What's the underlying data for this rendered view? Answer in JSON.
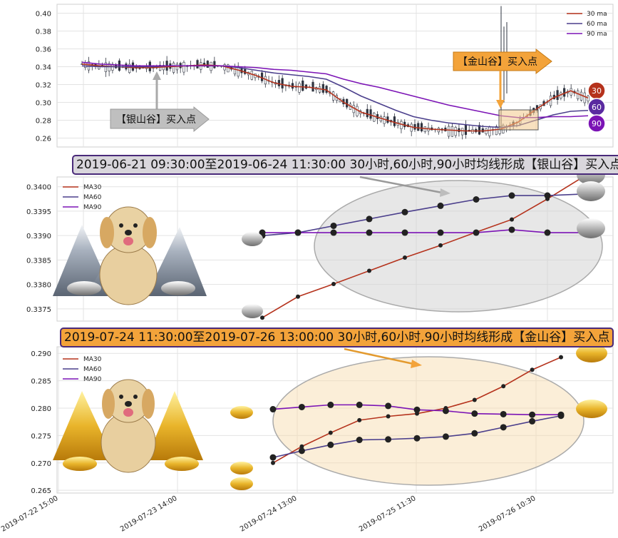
{
  "colors": {
    "ma30": "#b5321c",
    "ma60": "#4b3f8c",
    "ma90": "#7b13b5",
    "gold": "#f3a33a",
    "silver": "#c9c9c9"
  },
  "panel1": {
    "yticks": [
      "0.40",
      "0.38",
      "0.36",
      "0.34",
      "0.32",
      "0.30",
      "0.28",
      "0.26"
    ],
    "legend": [
      "30 ma",
      "60 ma",
      "90 ma"
    ],
    "silver_label": "【银山谷】买入点",
    "gold_label": "【金山谷】买入点",
    "badges": [
      "30",
      "60",
      "90"
    ]
  },
  "banner_silver": "2019-06-21 09:30:00至2019-06-24 11:30:00 30小时,60小时,90小时均线形成【银山谷】买入点",
  "banner_gold": "2019-07-24 11:30:00至2019-07-26 13:00:00 30小时,60小时,90小时均线形成【金山谷】买入点",
  "panel2": {
    "legend": [
      "MA30",
      "MA60",
      "MA90"
    ],
    "yticks": [
      "0.3400",
      "0.3395",
      "0.3390",
      "0.3385",
      "0.3380",
      "0.3375"
    ]
  },
  "panel3": {
    "legend": [
      "MA30",
      "MA60",
      "MA90"
    ],
    "yticks": [
      "0.290",
      "0.285",
      "0.280",
      "0.275",
      "0.270",
      "0.265"
    ],
    "xticks": [
      "2019-07-22 15:00",
      "2019-07-23 14:00",
      "2019-07-24 13:00",
      "2019-07-25 11:30",
      "2019-07-26 10:30"
    ]
  },
  "chart_data": [
    {
      "type": "line",
      "series": [
        {
          "name": "30 ma",
          "values": [
            0.343,
            0.341,
            0.34,
            0.339,
            0.339,
            0.34,
            0.341,
            0.342,
            0.341,
            0.336,
            0.33,
            0.322,
            0.318,
            0.317,
            0.314,
            0.3,
            0.289,
            0.283,
            0.277,
            0.272,
            0.27,
            0.269,
            0.268,
            0.268,
            0.27,
            0.278,
            0.292,
            0.305,
            0.313,
            0.305
          ]
        },
        {
          "name": "60 ma",
          "values": [
            0.341,
            0.34,
            0.34,
            0.34,
            0.34,
            0.341,
            0.341,
            0.341,
            0.341,
            0.339,
            0.336,
            0.333,
            0.331,
            0.329,
            0.326,
            0.317,
            0.307,
            0.299,
            0.291,
            0.284,
            0.28,
            0.277,
            0.275,
            0.273,
            0.272,
            0.274,
            0.28,
            0.286,
            0.29,
            0.291
          ]
        },
        {
          "name": "90 ma",
          "values": [
            0.345,
            0.343,
            0.342,
            0.341,
            0.341,
            0.341,
            0.341,
            0.341,
            0.341,
            0.34,
            0.339,
            0.337,
            0.336,
            0.334,
            0.332,
            0.326,
            0.321,
            0.317,
            0.312,
            0.307,
            0.302,
            0.297,
            0.293,
            0.289,
            0.285,
            0.283,
            0.283,
            0.284,
            0.284,
            0.285
          ]
        }
      ]
    },
    {
      "type": "line",
      "series": [
        {
          "name": "MA30",
          "values": [
            0.33732,
            0.33775,
            0.33801,
            0.33828,
            0.33855,
            0.3388,
            0.33907,
            0.33933,
            0.33975,
            0.3402
          ]
        },
        {
          "name": "MA60",
          "values": [
            0.339,
            0.33906,
            0.3392,
            0.33934,
            0.33948,
            0.33961,
            0.33974,
            0.33982,
            0.33982,
            0.33985
          ]
        },
        {
          "name": "MA90",
          "values": [
            0.33906,
            0.33906,
            0.33906,
            0.33906,
            0.33906,
            0.33906,
            0.33906,
            0.33912,
            0.33906,
            0.33906
          ]
        }
      ]
    },
    {
      "type": "line",
      "x": [
        "2019-07-24 11:30",
        "2019-07-24 13:00",
        "2019-07-24 14:00",
        "2019-07-24 15:00",
        "2019-07-25 10:30",
        "2019-07-25 11:30",
        "2019-07-25 14:00",
        "2019-07-25 15:00",
        "2019-07-26 10:30",
        "2019-07-26 11:30",
        "2019-07-26 13:00"
      ],
      "series": [
        {
          "name": "MA30",
          "values": [
            0.27,
            0.273,
            0.2755,
            0.2778,
            0.2785,
            0.279,
            0.28,
            0.2815,
            0.284,
            0.287,
            0.2893
          ]
        },
        {
          "name": "MA60",
          "values": [
            0.271,
            0.2722,
            0.2733,
            0.2742,
            0.2743,
            0.2745,
            0.2748,
            0.2754,
            0.2765,
            0.2776,
            0.2786
          ]
        },
        {
          "name": "MA90",
          "values": [
            0.2798,
            0.2802,
            0.2806,
            0.2806,
            0.2804,
            0.2797,
            0.2795,
            0.279,
            0.2789,
            0.2788,
            0.2788
          ]
        }
      ]
    }
  ]
}
